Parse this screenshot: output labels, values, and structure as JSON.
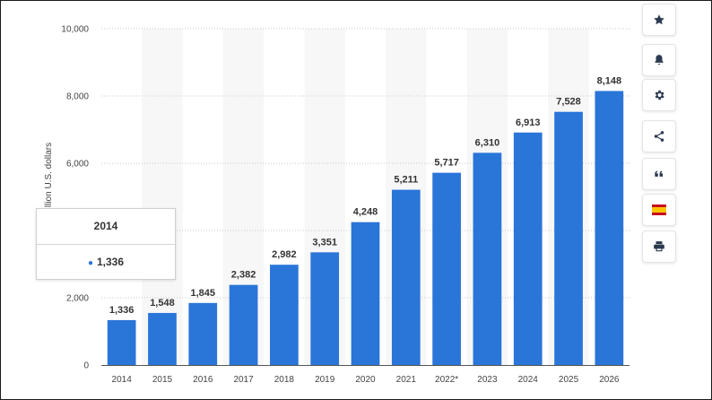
{
  "chart_data": {
    "type": "bar",
    "categories": [
      "2014",
      "2015",
      "2016",
      "2017",
      "2018",
      "2019",
      "2020",
      "2021",
      "2022*",
      "2023",
      "2024",
      "2025",
      "2026"
    ],
    "values": [
      1336,
      1548,
      1845,
      2382,
      2982,
      3351,
      4248,
      5211,
      5717,
      6310,
      6913,
      7528,
      8148
    ],
    "value_labels": [
      "1,336",
      "1,548",
      "1,845",
      "2,382",
      "2,982",
      "3,351",
      "4,248",
      "5,211",
      "5,717",
      "6,310",
      "6,913",
      "7,528",
      "8,148"
    ],
    "ylabel": "llion U.S. dollars",
    "ylim": [
      0,
      10000
    ],
    "yticks": [
      0,
      2000,
      4000,
      6000,
      8000,
      10000
    ],
    "ytick_labels": [
      "0",
      "2,000",
      "4,000",
      "6,000",
      "8,000",
      "10,000"
    ],
    "grid": true,
    "bar_color": "#2a75d8"
  },
  "tooltip": {
    "title": "2014",
    "value": "1,336"
  },
  "toolbar": {
    "icons": [
      "star-icon",
      "bell-icon",
      "gear-icon",
      "share-icon",
      "quote-icon",
      "spain-flag-icon",
      "print-icon"
    ]
  }
}
